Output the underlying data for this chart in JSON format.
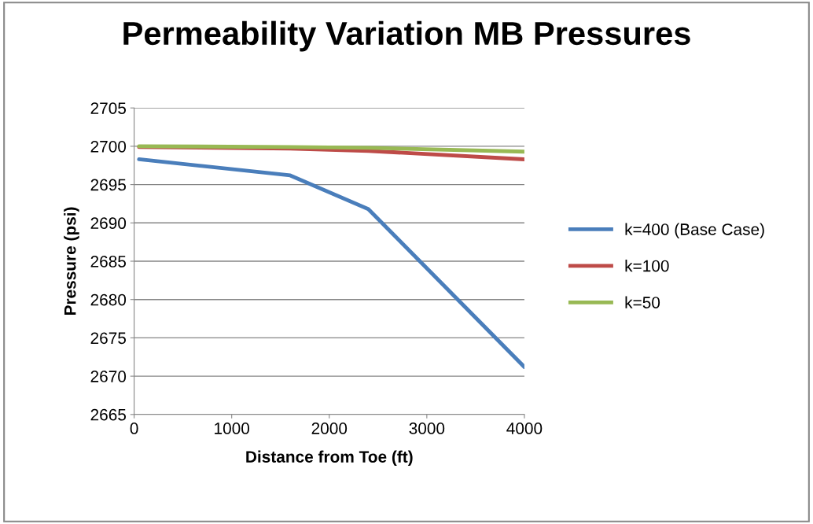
{
  "chart_data": {
    "type": "line",
    "title": "Permeability Variation MB Pressures",
    "xlabel": "Distance from Toe (ft)",
    "ylabel": "Pressure (psi)",
    "x": [
      50,
      1600,
      2400,
      4000
    ],
    "series": [
      {
        "name": "k=400 (Base Case)",
        "color": "#4a7ebb",
        "values": [
          2698.3,
          2696.2,
          2691.8,
          2671.2
        ]
      },
      {
        "name": "k=100",
        "color": "#be4b48",
        "values": [
          2699.9,
          2699.7,
          2699.4,
          2698.3
        ]
      },
      {
        "name": "k=50",
        "color": "#98b954",
        "values": [
          2700.0,
          2699.9,
          2699.8,
          2699.3
        ]
      }
    ],
    "xlim": [
      0,
      4000
    ],
    "xticks": [
      0,
      1000,
      2000,
      3000,
      4000
    ],
    "ylim": [
      2665,
      2705
    ],
    "yticks": [
      2665,
      2670,
      2675,
      2680,
      2685,
      2690,
      2695,
      2700,
      2705
    ],
    "grid": "y",
    "legend": "right",
    "marker": "none",
    "line_style": "solid"
  }
}
